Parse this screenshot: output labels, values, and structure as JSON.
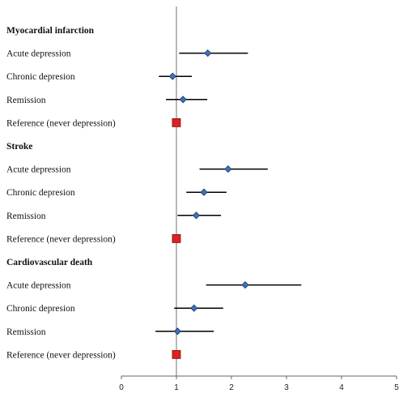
{
  "chart_data": {
    "type": "forest",
    "xlim": [
      0,
      5
    ],
    "x_ticks": [
      0,
      1,
      2,
      3,
      4,
      5
    ],
    "x_tick_labels": [
      "0",
      "1",
      "2",
      "3",
      "4",
      "5"
    ],
    "reference_line": 1,
    "colors": {
      "estimate_marker": "#3b74c4",
      "reference_marker": "#dd2020",
      "ci_line": "#000000",
      "reference_line": "#888888",
      "axis": "#666666"
    },
    "groups": [
      {
        "name": "Myocardial infarction",
        "rows": [
          {
            "label": "Acute depression",
            "estimate": 1.57,
            "lower": 1.05,
            "upper": 2.3,
            "reference": false
          },
          {
            "label": "Chronic depresion",
            "estimate": 0.93,
            "lower": 0.68,
            "upper": 1.28,
            "reference": false
          },
          {
            "label": "Remission",
            "estimate": 1.12,
            "lower": 0.81,
            "upper": 1.56,
            "reference": false
          },
          {
            "label": "Reference (never depression)",
            "estimate": 1.0,
            "lower": null,
            "upper": null,
            "reference": true
          }
        ]
      },
      {
        "name": "Stroke",
        "rows": [
          {
            "label": "Acute depression",
            "estimate": 1.94,
            "lower": 1.42,
            "upper": 2.66,
            "reference": false
          },
          {
            "label": "Chronic depresion",
            "estimate": 1.5,
            "lower": 1.18,
            "upper": 1.91,
            "reference": false
          },
          {
            "label": "Remission",
            "estimate": 1.36,
            "lower": 1.02,
            "upper": 1.81,
            "reference": false
          },
          {
            "label": "Reference (never depression)",
            "estimate": 1.0,
            "lower": null,
            "upper": null,
            "reference": true
          }
        ]
      },
      {
        "name": "Cardiovascular death",
        "rows": [
          {
            "label": "Acute depression",
            "estimate": 2.25,
            "lower": 1.54,
            "upper": 3.27,
            "reference": false
          },
          {
            "label": "Chronic depresion",
            "estimate": 1.32,
            "lower": 0.96,
            "upper": 1.85,
            "reference": false
          },
          {
            "label": "Remission",
            "estimate": 1.02,
            "lower": 0.62,
            "upper": 1.68,
            "reference": false
          },
          {
            "label": "Reference (never depression)",
            "estimate": 1.0,
            "lower": null,
            "upper": null,
            "reference": true
          }
        ]
      }
    ]
  }
}
